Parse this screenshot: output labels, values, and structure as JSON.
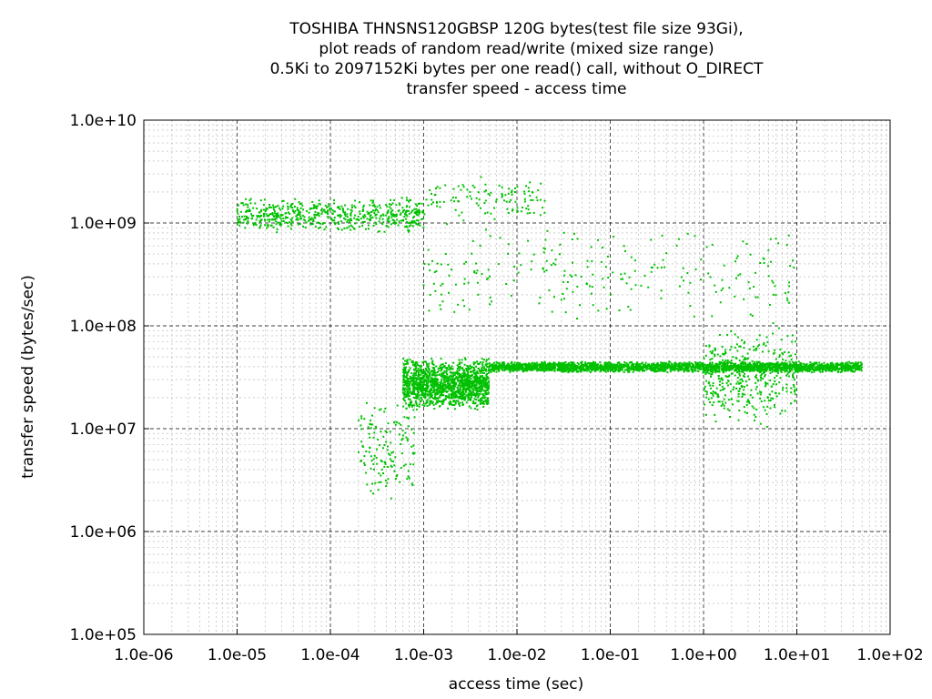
{
  "chart_data": {
    "type": "scatter",
    "title_lines": [
      "TOSHIBA THNSNS120GBSP 120G bytes(test file size 93Gi),",
      "plot reads of random read/write (mixed size range)",
      "0.5Ki to 2097152Ki bytes per one read() call, without O_DIRECT",
      "transfer speed - access time"
    ],
    "xlabel": "access time (sec)",
    "ylabel": "transfer speed (bytes/sec)",
    "x_scale": "log",
    "y_scale": "log",
    "xlim": [
      1e-06,
      100
    ],
    "ylim": [
      100000.0,
      10000000000.0
    ],
    "x_ticks": [
      "1.0e-06",
      "1.0e-05",
      "1.0e-04",
      "1.0e-03",
      "1.0e-02",
      "1.0e-01",
      "1.0e+00",
      "1.0e+01",
      "1.0e+02"
    ],
    "y_ticks": [
      "1.0e+05",
      "1.0e+06",
      "1.0e+07",
      "1.0e+08",
      "1.0e+09",
      "1.0e+10"
    ],
    "grid": true,
    "point_color": "#00c000",
    "clusters": [
      {
        "n": 600,
        "x": [
          1e-05,
          0.001
        ],
        "y": [
          800000000.0,
          1800000000.0
        ]
      },
      {
        "n": 120,
        "x": [
          0.001,
          0.02
        ],
        "y": [
          1000000000.0,
          3000000000.0
        ]
      },
      {
        "n": 1500,
        "x": [
          0.0006,
          0.005
        ],
        "y": [
          15000000.0,
          50000000.0
        ]
      },
      {
        "n": 2500,
        "x": [
          0.005,
          50.0
        ],
        "y": [
          35000000.0,
          45000000.0
        ]
      },
      {
        "n": 400,
        "x": [
          1,
          10
        ],
        "y": [
          10000000.0,
          100000000.0
        ]
      },
      {
        "n": 150,
        "x": [
          0.0002,
          0.0008
        ],
        "y": [
          2000000.0,
          20000000.0
        ]
      },
      {
        "n": 250,
        "x": [
          0.001,
          10
        ],
        "y": [
          100000000.0,
          1000000000.0
        ]
      }
    ]
  }
}
